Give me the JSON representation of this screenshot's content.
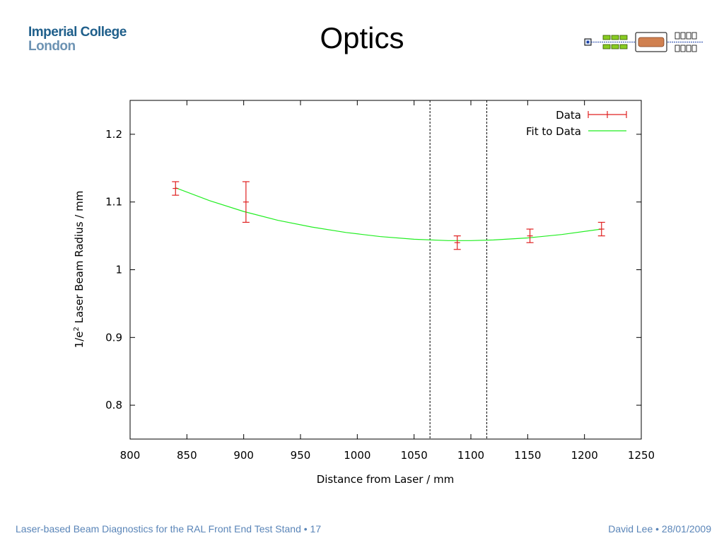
{
  "logo": {
    "line1": "Imperial College",
    "line2": "London"
  },
  "title": "Optics",
  "footer": {
    "left": "Laser-based Beam Diagnostics for the RAL Front End Test Stand • 17",
    "right": "David Lee • 28/01/2009"
  },
  "colors": {
    "data": "#e02020",
    "fit": "#22ee22",
    "footer": "#5a85b8",
    "logo": "#1f5f8b"
  },
  "chart_data": {
    "type": "scatter",
    "xlabel": "Distance from Laser / mm",
    "ylabel_pre": "1/e",
    "ylabel_sup": "2",
    "ylabel_post": " Laser Beam Radius / mm",
    "xlim": [
      800,
      1250
    ],
    "ylim": [
      0.75,
      1.25
    ],
    "xticks": [
      800,
      850,
      900,
      950,
      1000,
      1050,
      1100,
      1150,
      1200,
      1250
    ],
    "yticks": [
      0.8,
      0.9,
      1,
      1.1,
      1.2
    ],
    "series": [
      {
        "name": "Data",
        "style": "points-with-errorbars",
        "points": [
          {
            "x": 840,
            "y": 1.12,
            "err": 0.01
          },
          {
            "x": 902,
            "y": 1.1,
            "err": 0.03
          },
          {
            "x": 1088,
            "y": 1.04,
            "err": 0.01
          },
          {
            "x": 1152,
            "y": 1.05,
            "err": 0.01
          },
          {
            "x": 1215,
            "y": 1.06,
            "err": 0.01
          }
        ]
      },
      {
        "name": "Fit to Data",
        "style": "line",
        "x": [
          840,
          870,
          900,
          930,
          960,
          990,
          1020,
          1050,
          1080,
          1100,
          1120,
          1150,
          1180,
          1215
        ],
        "y": [
          1.121,
          1.102,
          1.086,
          1.073,
          1.063,
          1.055,
          1.049,
          1.045,
          1.043,
          1.043,
          1.044,
          1.047,
          1.052,
          1.06
        ]
      }
    ],
    "vlines": [
      1064,
      1114
    ],
    "legend": "top-right",
    "grid": false
  }
}
